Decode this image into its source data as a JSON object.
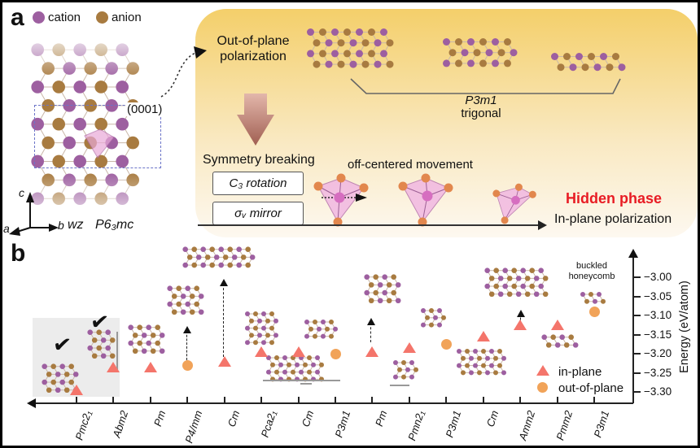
{
  "icons": {
    "check": "✔"
  },
  "panel_a": {
    "label": "a",
    "legend": {
      "cation": "cation",
      "anion": "anion"
    },
    "plane_label": "(0001)",
    "axes": {
      "a": "a",
      "b": "b",
      "c": "c"
    },
    "structure": {
      "wz": "wz",
      "space_group": "P6₃mc"
    },
    "out_of_plane": {
      "line1": "Out-of-plane",
      "line2": "polarization"
    },
    "trigonal": {
      "space_group": "P3m1",
      "system": "trigonal"
    },
    "symmetry_breaking": "Symmetry breaking",
    "c3_rotation": "C₃ rotation",
    "sigma_mirror": "σᵥ mirror",
    "off_centered": "off-centered movement",
    "hidden_phase": "Hidden phase",
    "hidden_phase_color": "#e81c24",
    "in_plane": "In-plane polarization"
  },
  "panel_b": {
    "label": "b",
    "buckled": {
      "line1": "buckled",
      "line2": "honeycomb"
    },
    "legend": {
      "in_plane": "in-plane",
      "out_of_plane": "out-of-plane"
    }
  },
  "colors": {
    "cation": "#9d5fa0",
    "anion": "#a87b40",
    "in_plane_marker": "#f4756b",
    "out_of_plane_marker": "#f1a359"
  },
  "chart_data": {
    "type": "scatter",
    "title": "",
    "xlabel": "",
    "ylabel": "Energy (eV/atom)",
    "categories": [
      "Pmc2₁",
      "Abm2",
      "Pm",
      "P4/mm",
      "Cm",
      "Pca2₁",
      "Cm",
      "P3m1",
      "Pm",
      "Pmn2₁",
      "P3m1",
      "Cm",
      "Amm2",
      "Pmm2",
      "P3m1"
    ],
    "yticks": [
      -3.0,
      -3.05,
      -3.1,
      -3.15,
      -3.2,
      -3.25,
      -3.3
    ],
    "ylim": [
      -3.32,
      -2.97
    ],
    "legend_position": "lower right",
    "grid": false,
    "checked_categories": [
      "Pmc2₁",
      "Abm2"
    ],
    "annotation": "buckled honeycomb",
    "series": [
      {
        "name": "in-plane",
        "marker": "triangle",
        "color": "#f4756b",
        "points": [
          [
            0,
            -3.3
          ],
          [
            1,
            -3.24
          ],
          [
            2,
            -3.24
          ],
          [
            4,
            -3.225
          ],
          [
            5,
            -3.2
          ],
          [
            6,
            -3.2
          ],
          [
            8,
            -3.2
          ],
          [
            9,
            -3.19
          ],
          [
            11,
            -3.16
          ],
          [
            12,
            -3.13
          ],
          [
            13,
            -3.13
          ]
        ]
      },
      {
        "name": "out-of-plane",
        "marker": "circle",
        "color": "#f1a359",
        "points": [
          [
            3,
            -3.23
          ],
          [
            7,
            -3.2
          ],
          [
            10,
            -3.175
          ],
          [
            14,
            -3.09
          ]
        ]
      }
    ]
  }
}
